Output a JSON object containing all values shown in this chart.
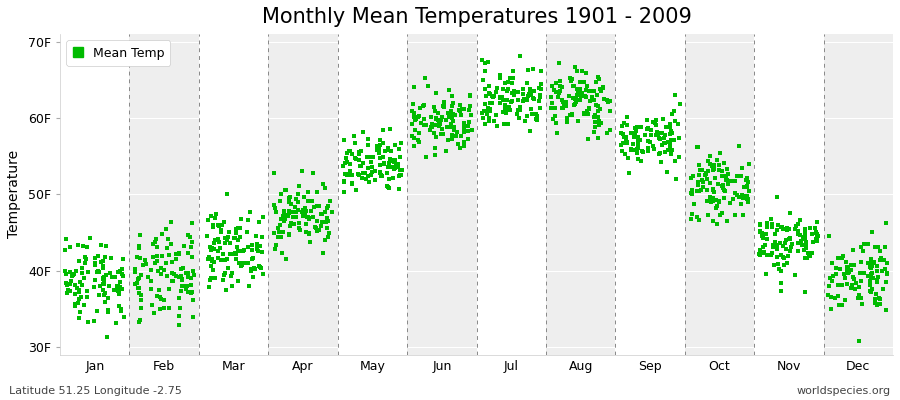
{
  "title": "Monthly Mean Temperatures 1901 - 2009",
  "ylabel": "Temperature",
  "footer_left": "Latitude 51.25 Longitude -2.75",
  "footer_right": "worldspecies.org",
  "legend_label": "Mean Temp",
  "months": [
    "Jan",
    "Feb",
    "Mar",
    "Apr",
    "May",
    "Jun",
    "Jul",
    "Aug",
    "Sep",
    "Oct",
    "Nov",
    "Dec"
  ],
  "month_means_C": [
    3.8,
    3.9,
    6.0,
    8.5,
    12.0,
    15.2,
    17.0,
    16.8,
    14.0,
    10.5,
    6.5,
    4.2
  ],
  "month_stds_C": [
    1.6,
    1.7,
    1.3,
    1.2,
    1.1,
    1.1,
    1.2,
    1.2,
    1.0,
    1.1,
    1.2,
    1.4
  ],
  "n_years": 109,
  "ylim_F": [
    29,
    71
  ],
  "yticks_F": [
    30,
    40,
    50,
    60,
    70
  ],
  "marker_color": "#00bb00",
  "marker_size": 5,
  "bg_color": "#ffffff",
  "plot_bg_color_white": "#ffffff",
  "plot_bg_color_gray": "#eeeeee",
  "title_fontsize": 15,
  "axis_label_fontsize": 10,
  "tick_fontsize": 9,
  "footer_fontsize": 8,
  "dashed_line_color": "#888888"
}
